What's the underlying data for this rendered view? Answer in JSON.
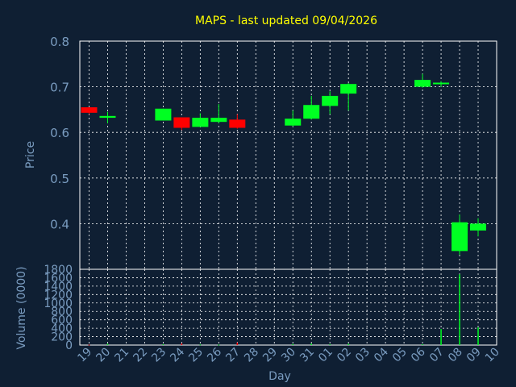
{
  "chart_data": {
    "type": "candlestick",
    "title": "MAPS - last updated 09/04/2026",
    "xlabel": "Day",
    "ylabel": "Price",
    "volume_label": "Volume (0000)",
    "colors": {
      "background": "#0f1f33",
      "axis_text": "#7a9cc0",
      "title": "#ffff00",
      "grid": "#ffffff",
      "up": "#00ff22",
      "down": "#ff0000"
    },
    "grid": true,
    "price_ylim": [
      0.3,
      0.8
    ],
    "price_ticks": [
      "0.4",
      "0.5",
      "0.6",
      "0.7",
      "0.8"
    ],
    "volume_ylim": [
      0,
      1800
    ],
    "volume_ticks": [
      "0",
      "200",
      "400",
      "600",
      "800",
      "1000",
      "1200",
      "1400",
      "1600",
      "1800"
    ],
    "x_ticks": [
      "19",
      "20",
      "21",
      "22",
      "23",
      "24",
      "25",
      "26",
      "27",
      "28",
      "29",
      "30",
      "31",
      "01",
      "02",
      "03",
      "04",
      "05",
      "06",
      "07",
      "08",
      "09",
      "10"
    ],
    "candles": [
      {
        "day": "19",
        "open": 0.655,
        "high": 0.655,
        "low": 0.64,
        "close": 0.643,
        "volume": 10
      },
      {
        "day": "20",
        "open": 0.632,
        "high": 0.645,
        "low": 0.62,
        "close": 0.636,
        "volume": 30
      },
      {
        "day": "23",
        "open": 0.626,
        "high": 0.652,
        "low": 0.626,
        "close": 0.652,
        "volume": 20
      },
      {
        "day": "24",
        "open": 0.633,
        "high": 0.633,
        "low": 0.605,
        "close": 0.61,
        "volume": 40
      },
      {
        "day": "25",
        "open": 0.612,
        "high": 0.642,
        "low": 0.612,
        "close": 0.632,
        "volume": 15
      },
      {
        "day": "26",
        "open": 0.623,
        "high": 0.662,
        "low": 0.62,
        "close": 0.632,
        "volume": 10
      },
      {
        "day": "27",
        "open": 0.628,
        "high": 0.64,
        "low": 0.608,
        "close": 0.61,
        "volume": 60
      },
      {
        "day": "30",
        "open": 0.615,
        "high": 0.648,
        "low": 0.613,
        "close": 0.63,
        "volume": 25
      },
      {
        "day": "31",
        "open": 0.63,
        "high": 0.68,
        "low": 0.628,
        "close": 0.66,
        "volume": 35
      },
      {
        "day": "01",
        "open": 0.658,
        "high": 0.69,
        "low": 0.64,
        "close": 0.68,
        "volume": 20
      },
      {
        "day": "02",
        "open": 0.685,
        "high": 0.708,
        "low": 0.648,
        "close": 0.706,
        "volume": 30
      },
      {
        "day": "06",
        "open": 0.7,
        "high": 0.728,
        "low": 0.698,
        "close": 0.715,
        "volume": 20
      },
      {
        "day": "07",
        "open": 0.706,
        "high": 0.712,
        "low": 0.7,
        "close": 0.709,
        "volume": 380
      },
      {
        "day": "08",
        "open": 0.34,
        "high": 0.42,
        "low": 0.332,
        "close": 0.403,
        "volume": 1680
      },
      {
        "day": "09",
        "open": 0.385,
        "high": 0.412,
        "low": 0.372,
        "close": 0.4,
        "volume": 420
      }
    ]
  }
}
